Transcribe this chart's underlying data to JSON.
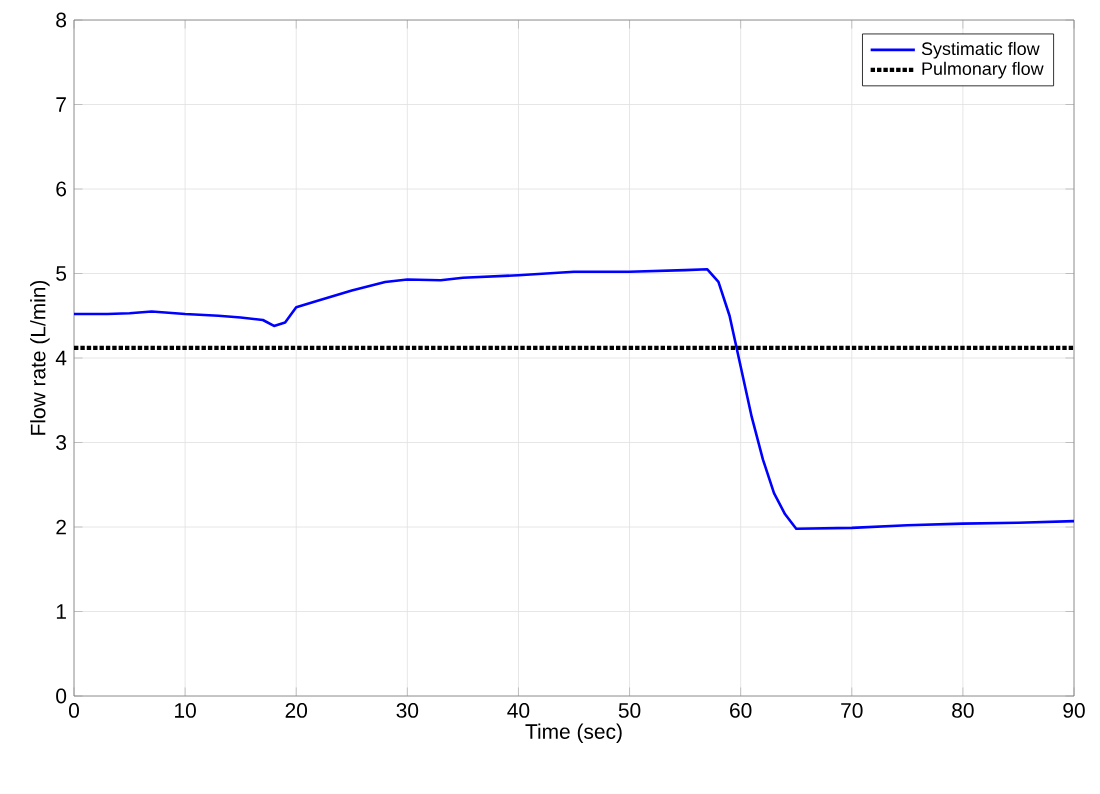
{
  "chart_data": {
    "type": "line",
    "xlabel": "Time (sec)",
    "ylabel": "Flow rate (L/min)",
    "xlim": [
      0,
      90
    ],
    "ylim": [
      0,
      8
    ],
    "xticks": [
      0,
      10,
      20,
      30,
      40,
      50,
      60,
      70,
      80,
      90
    ],
    "yticks": [
      0,
      1,
      2,
      3,
      4,
      5,
      6,
      7,
      8
    ],
    "grid": true,
    "legend": "top right",
    "series": [
      {
        "name": "Systimatic flow",
        "color": "#0000ff",
        "line_style": "solid",
        "x": [
          0,
          3,
          5,
          7,
          10,
          13,
          15,
          17,
          18,
          19,
          20,
          22,
          25,
          28,
          30,
          33,
          35,
          40,
          45,
          50,
          55,
          57,
          58,
          59,
          60,
          61,
          62,
          63,
          64,
          65,
          70,
          75,
          80,
          85,
          90
        ],
        "values": [
          4.52,
          4.52,
          4.53,
          4.55,
          4.52,
          4.5,
          4.48,
          4.45,
          4.38,
          4.42,
          4.6,
          4.68,
          4.8,
          4.9,
          4.93,
          4.92,
          4.95,
          4.98,
          5.02,
          5.02,
          5.04,
          5.05,
          4.9,
          4.5,
          3.9,
          3.3,
          2.8,
          2.4,
          2.15,
          1.98,
          1.99,
          2.02,
          2.04,
          2.05,
          2.07
        ]
      },
      {
        "name": "Pulmonary flow",
        "color": "#000000",
        "line_style": "dotted",
        "x": [
          0,
          90
        ],
        "values": [
          4.12,
          4.12
        ]
      }
    ]
  }
}
